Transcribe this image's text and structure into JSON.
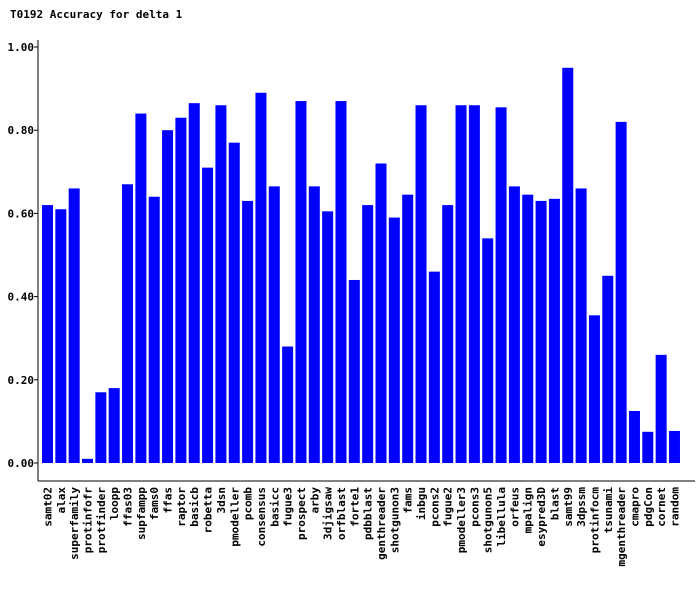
{
  "chart_data": {
    "type": "bar",
    "title": "T0192 Accuracy for delta 1",
    "categories": [
      "samt02",
      "alax",
      "superfamily",
      "protinfofr",
      "protfinder",
      "loopp",
      "ffas03",
      "supfampp",
      "fams0",
      "ffas",
      "raptor",
      "basicb",
      "robetta",
      "3dsn",
      "pmodeller",
      "pcomb",
      "consensus",
      "basicc",
      "fugue3",
      "prospect",
      "arby",
      "3djigsaw",
      "orfblast",
      "forte1",
      "pdbblast",
      "genthreader",
      "shotgunon3",
      "fams",
      "inbgu",
      "pcons2",
      "fugue2",
      "pmodeller3",
      "pcons3",
      "shotgunon5",
      "libellula",
      "orfeus",
      "mpalign",
      "esypred3D",
      "blast",
      "samt99",
      "3dpssm",
      "protinfocm",
      "tsunami",
      "mgenthreader",
      "cmapro",
      "pdgCon",
      "cornet",
      "random"
    ],
    "values": [
      0.62,
      0.61,
      0.66,
      0.01,
      0.17,
      0.18,
      0.67,
      0.84,
      0.64,
      0.8,
      0.83,
      0.865,
      0.71,
      0.86,
      0.77,
      0.63,
      0.89,
      0.665,
      0.28,
      0.87,
      0.665,
      0.605,
      0.87,
      0.44,
      0.62,
      0.72,
      0.59,
      0.645,
      0.86,
      0.46,
      0.62,
      0.86,
      0.86,
      0.54,
      0.855,
      0.665,
      0.645,
      0.63,
      0.635,
      0.95,
      0.66,
      0.355,
      0.45,
      0.82,
      0.125,
      0.075,
      0.26,
      0.077
    ],
    "color": "#0000ff",
    "ylim": [
      0,
      1
    ],
    "yticks": [
      {
        "value": 0,
        "label": "0.00"
      },
      {
        "value": 0.2,
        "label": "0.20"
      },
      {
        "value": 0.4,
        "label": "0.40"
      },
      {
        "value": 0.6,
        "label": "0.60"
      },
      {
        "value": 0.8,
        "label": "0.80"
      },
      {
        "value": 1,
        "label": "1.00"
      }
    ]
  }
}
